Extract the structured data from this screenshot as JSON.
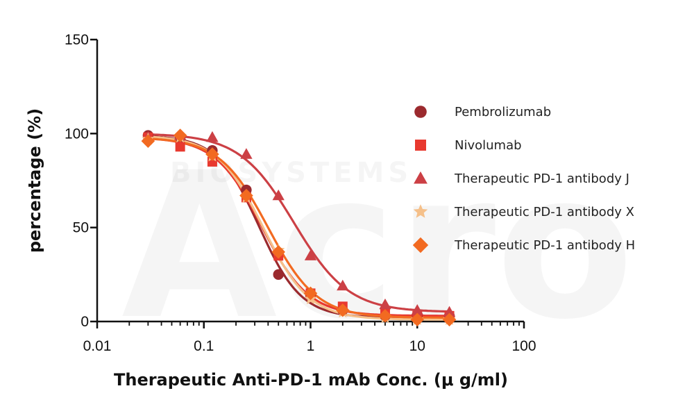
{
  "chart_data": {
    "type": "scatter",
    "xscale": "log",
    "xlim": [
      0.01,
      100
    ],
    "ylim": [
      0,
      150
    ],
    "xlabel": "Therapeutic Anti-PD-1 mAb Conc. (μ g/ml)",
    "ylabel": "percentage (%)",
    "x_ticks": [
      "0.01",
      "0.1",
      "1",
      "10",
      "100"
    ],
    "y_ticks": [
      "0",
      "50",
      "100",
      "150"
    ],
    "watermark": "Acro",
    "watermark_sub": "BIOSYSTEMS",
    "legend_position": "right",
    "series": [
      {
        "name": "Pembrolizumab",
        "marker": "circle",
        "color": "#9b2a2e",
        "fit": {
          "top": 99,
          "bottom": 2,
          "ec50": 0.33,
          "hill": 2.2
        },
        "points": [
          [
            0.03,
            99
          ],
          [
            0.06,
            98
          ],
          [
            0.12,
            91
          ],
          [
            0.25,
            70
          ],
          [
            0.5,
            25
          ],
          [
            1,
            14
          ],
          [
            2,
            6
          ],
          [
            5,
            3
          ],
          [
            10,
            3
          ],
          [
            20,
            3
          ]
        ]
      },
      {
        "name": "Nivolumab",
        "marker": "square",
        "color": "#e8392f",
        "fit": {
          "top": 98,
          "bottom": 3,
          "ec50": 0.35,
          "hill": 2.0
        },
        "points": [
          [
            0.03,
            98
          ],
          [
            0.06,
            93
          ],
          [
            0.12,
            85
          ],
          [
            0.25,
            66
          ],
          [
            0.5,
            35
          ],
          [
            1,
            15
          ],
          [
            2,
            8
          ],
          [
            5,
            5
          ],
          [
            10,
            3
          ],
          [
            20,
            3
          ]
        ]
      },
      {
        "name": "Therapeutic PD-1 antibody J",
        "marker": "triangle",
        "color": "#cc4045",
        "fit": {
          "top": 100,
          "bottom": 5,
          "ec50": 0.7,
          "hill": 1.7
        },
        "points": [
          [
            0.03,
            98
          ],
          [
            0.06,
            99
          ],
          [
            0.12,
            98
          ],
          [
            0.25,
            89
          ],
          [
            0.5,
            67
          ],
          [
            1,
            35
          ],
          [
            2,
            19
          ],
          [
            5,
            9
          ],
          [
            10,
            6
          ],
          [
            20,
            5
          ]
        ]
      },
      {
        "name": "Therapeutic PD-1 antibody X",
        "marker": "star",
        "color": "#f5c08a",
        "fit": {
          "top": 99,
          "bottom": 1,
          "ec50": 0.36,
          "hill": 2.0
        },
        "points": [
          [
            0.03,
            97
          ],
          [
            0.06,
            98
          ],
          [
            0.12,
            88
          ],
          [
            0.25,
            66
          ],
          [
            0.5,
            38
          ],
          [
            1,
            12
          ],
          [
            2,
            5
          ],
          [
            5,
            2
          ],
          [
            10,
            1
          ],
          [
            20,
            1
          ]
        ]
      },
      {
        "name": "Therapeutic PD-1 antibody H",
        "marker": "diamond",
        "color": "#f26a21",
        "fit": {
          "top": 98,
          "bottom": 2,
          "ec50": 0.4,
          "hill": 1.9
        },
        "points": [
          [
            0.03,
            96
          ],
          [
            0.06,
            99
          ],
          [
            0.12,
            89
          ],
          [
            0.25,
            67
          ],
          [
            0.5,
            37
          ],
          [
            1,
            15
          ],
          [
            2,
            6
          ],
          [
            5,
            3
          ],
          [
            10,
            1
          ],
          [
            20,
            1
          ]
        ]
      }
    ]
  }
}
